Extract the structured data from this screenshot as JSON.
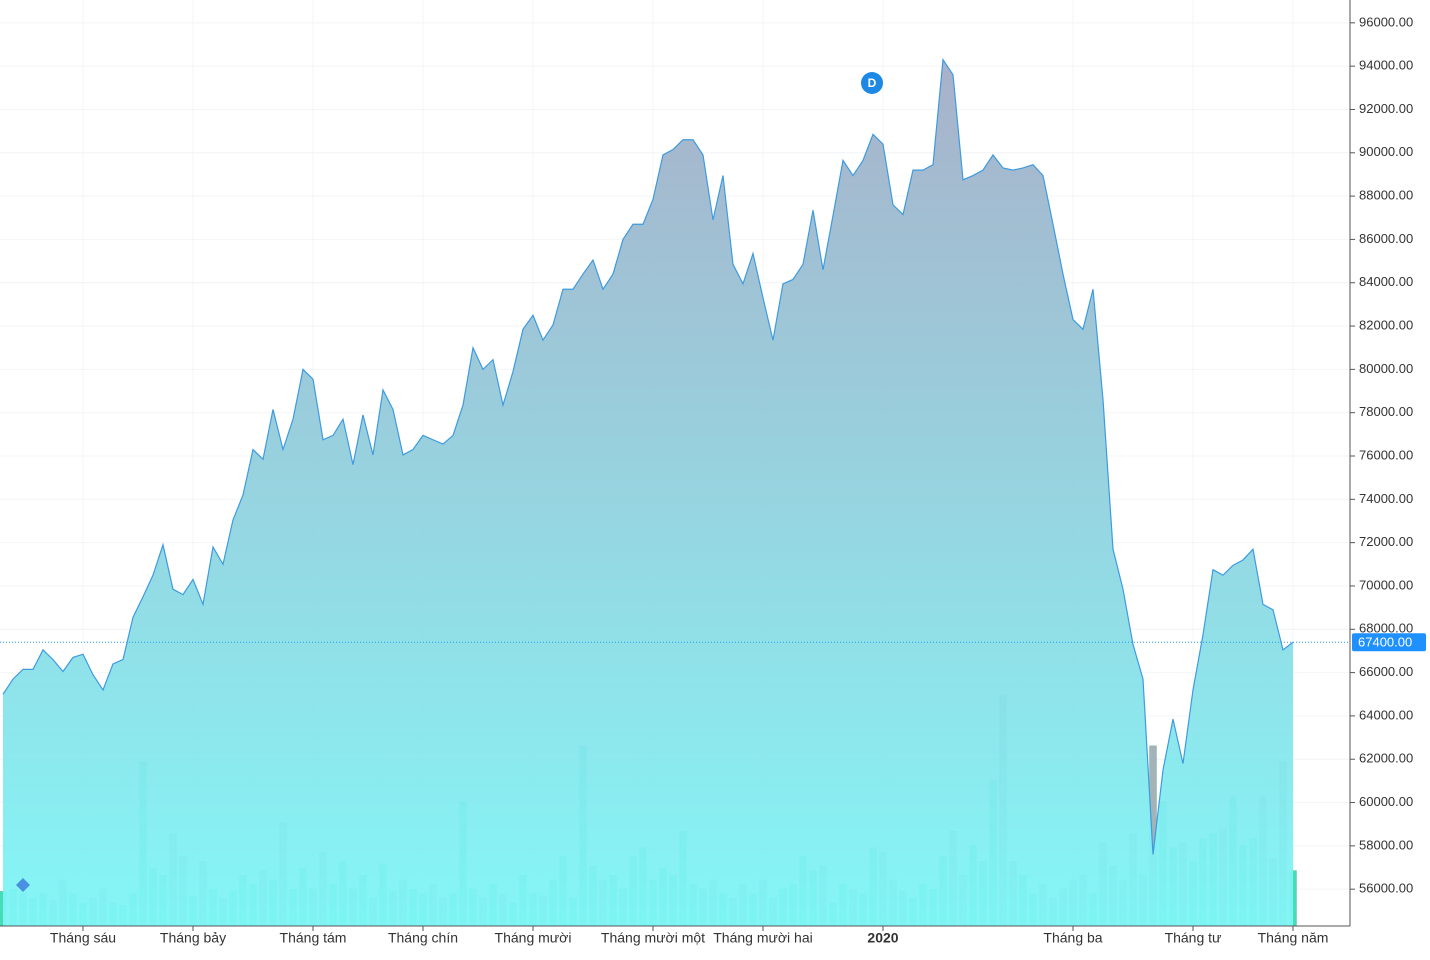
{
  "chart_data": {
    "type": "area",
    "categories": [
      null,
      null,
      null,
      null,
      null,
      null,
      null,
      null,
      "Tháng sáu",
      null,
      null,
      null,
      null,
      null,
      null,
      null,
      null,
      null,
      null,
      "Tháng bảy",
      null,
      null,
      null,
      null,
      null,
      null,
      null,
      null,
      null,
      null,
      null,
      "Tháng tám",
      null,
      null,
      null,
      null,
      null,
      null,
      null,
      null,
      null,
      null,
      "Tháng chín",
      null,
      null,
      null,
      null,
      null,
      null,
      null,
      null,
      null,
      null,
      "Tháng mười",
      null,
      null,
      null,
      null,
      null,
      null,
      null,
      null,
      null,
      null,
      null,
      "Tháng mười một",
      null,
      null,
      null,
      null,
      null,
      null,
      null,
      null,
      null,
      null,
      "Tháng mười hai",
      null,
      null,
      null,
      null,
      null,
      null,
      null,
      null,
      null,
      null,
      null,
      "2020",
      null,
      null,
      null,
      null,
      null,
      null,
      null,
      null,
      null,
      null,
      null,
      null,
      null,
      null,
      null,
      null,
      null,
      null,
      "Tháng ba",
      null,
      null,
      null,
      null,
      null,
      null,
      null,
      null,
      null,
      null,
      null,
      "Tháng tư",
      null,
      null,
      null,
      null,
      null,
      null,
      null,
      null,
      null,
      "Tháng năm"
    ],
    "series": [
      {
        "type": "area",
        "color": "#3d9be0",
        "values": [
          65000,
          65700,
          66150,
          66150,
          67050,
          66600,
          66050,
          66700,
          66850,
          65900,
          65200,
          66400,
          66600,
          68550,
          69500,
          70500,
          71900,
          69850,
          69600,
          70300,
          69150,
          71800,
          71000,
          73050,
          74200,
          76300,
          75850,
          78150,
          76300,
          77700,
          80000,
          79550,
          76750,
          76950,
          77700,
          75600,
          77900,
          76050,
          79050,
          78150,
          76050,
          76300,
          76950,
          76750,
          76550,
          76950,
          78350,
          81000,
          80000,
          80450,
          78350,
          79900,
          81850,
          82500,
          81350,
          82050,
          83700,
          83700,
          84400,
          85050,
          83700,
          84400,
          86000,
          86700,
          86700,
          87850,
          89900,
          90150,
          90600,
          90600,
          89900,
          86900,
          88950,
          84850,
          83950,
          85350,
          83300,
          81350,
          83950,
          84150,
          84850,
          87350,
          84600,
          87100,
          89650,
          88950,
          89650,
          90850,
          90400,
          87600,
          87150,
          89200,
          89200,
          89450,
          94300,
          93600,
          88750,
          88950,
          89200,
          89900,
          89300,
          89200,
          89300,
          89450,
          88950,
          86700,
          84400,
          82300,
          81850,
          83700,
          78600,
          71700,
          69850,
          67300,
          65700,
          57600,
          61500,
          63850,
          61800,
          65200,
          67750,
          70750,
          70500,
          70950,
          71200,
          71700,
          69150,
          68900,
          67050,
          67400
        ]
      },
      {
        "type": "bar",
        "axis": "y2",
        "up_color": "#44ddb8",
        "down_color": "#a3b3b8",
        "values": [
          15,
          16,
          14,
          12,
          14,
          11,
          20,
          14,
          10,
          12,
          16,
          10,
          9,
          14,
          71,
          25,
          22,
          40,
          30,
          13,
          28,
          16,
          12,
          15,
          22,
          18,
          24,
          20,
          45,
          16,
          25,
          16,
          32,
          18,
          28,
          16,
          22,
          12,
          27,
          15,
          20,
          16,
          14,
          18,
          12,
          14,
          54,
          16,
          12,
          18,
          14,
          10,
          22,
          14,
          13,
          20,
          30,
          12,
          78,
          26,
          20,
          22,
          16,
          30,
          34,
          20,
          25,
          22,
          41,
          18,
          16,
          20,
          14,
          12,
          18,
          14,
          20,
          12,
          16,
          18,
          30,
          24,
          26,
          10,
          18,
          16,
          14,
          34,
          32,
          20,
          15,
          12,
          18,
          16,
          30,
          41,
          22,
          35,
          28,
          63,
          100,
          28,
          22,
          14,
          18,
          12,
          16,
          20,
          22,
          14,
          36,
          26,
          20,
          40,
          22,
          78,
          54,
          34,
          36,
          28,
          38,
          40,
          42,
          56,
          35,
          38,
          56,
          29,
          71,
          24
        ]
      }
    ],
    "ylim": [
      54300,
      96500
    ],
    "y2lim": [
      0,
      100
    ],
    "yticks": [
      {
        "value": 56000,
        "label": "56000.00"
      },
      {
        "value": 58000,
        "label": "58000.00"
      },
      {
        "value": 60000,
        "label": "60000.00"
      },
      {
        "value": 62000,
        "label": "62000.00"
      },
      {
        "value": 64000,
        "label": "64000.00"
      },
      {
        "value": 66000,
        "label": "66000.00"
      },
      {
        "value": 68000,
        "label": "68000.00"
      },
      {
        "value": 70000,
        "label": "70000.00"
      },
      {
        "value": 72000,
        "label": "72000.00"
      },
      {
        "value": 74000,
        "label": "74000.00"
      },
      {
        "value": 76000,
        "label": "76000.00"
      },
      {
        "value": 78000,
        "label": "78000.00"
      },
      {
        "value": 80000,
        "label": "80000.00"
      },
      {
        "value": 82000,
        "label": "82000.00"
      },
      {
        "value": 84000,
        "label": "84000.00"
      },
      {
        "value": 86000,
        "label": "86000.00"
      },
      {
        "value": 88000,
        "label": "88000.00"
      },
      {
        "value": 90000,
        "label": "90000.00"
      },
      {
        "value": 92000,
        "label": "92000.00"
      },
      {
        "value": 94000,
        "label": "94000.00"
      },
      {
        "value": 96000,
        "label": "96000.00"
      }
    ],
    "last_price": {
      "value": 67400,
      "label": "67400.00"
    },
    "marker": "D",
    "grid": true
  }
}
